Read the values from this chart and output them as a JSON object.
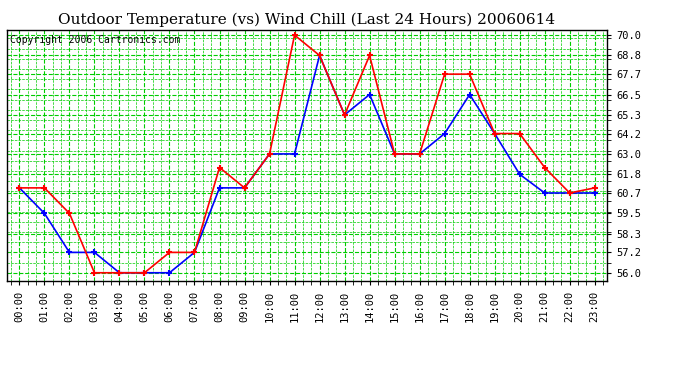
{
  "title": "Outdoor Temperature (vs) Wind Chill (Last 24 Hours) 20060614",
  "copyright": "Copyright 2006 Cartronics.com",
  "hours": [
    "00:00",
    "01:00",
    "02:00",
    "03:00",
    "04:00",
    "05:00",
    "06:00",
    "07:00",
    "08:00",
    "09:00",
    "10:00",
    "11:00",
    "12:00",
    "13:00",
    "14:00",
    "15:00",
    "16:00",
    "17:00",
    "18:00",
    "19:00",
    "20:00",
    "21:00",
    "22:00",
    "23:00"
  ],
  "temp": [
    61.0,
    61.0,
    59.5,
    56.0,
    56.0,
    56.0,
    57.2,
    57.2,
    62.2,
    61.0,
    63.0,
    70.0,
    68.8,
    65.3,
    68.8,
    63.0,
    63.0,
    67.7,
    67.7,
    64.2,
    64.2,
    62.2,
    60.7,
    61.0
  ],
  "wind_chill": [
    61.0,
    59.5,
    57.2,
    57.2,
    56.0,
    56.0,
    56.0,
    57.2,
    61.0,
    61.0,
    63.0,
    63.0,
    68.8,
    65.3,
    66.5,
    63.0,
    63.0,
    64.2,
    66.5,
    64.2,
    61.8,
    60.7,
    60.7,
    60.7
  ],
  "temp_color": "#ff0000",
  "wind_chill_color": "#0000ff",
  "bg_color": "#ffffff",
  "grid_color": "#00cc00",
  "ymin": 56.0,
  "ymax": 70.0,
  "yticks": [
    56.0,
    57.2,
    58.3,
    59.5,
    60.7,
    61.8,
    63.0,
    64.2,
    65.3,
    66.5,
    67.7,
    68.8,
    70.0
  ],
  "title_fontsize": 11,
  "copyright_fontsize": 7,
  "tick_fontsize": 7.5,
  "marker": "+",
  "marker_size": 5,
  "marker_edge_width": 1.5,
  "line_width": 1.2
}
